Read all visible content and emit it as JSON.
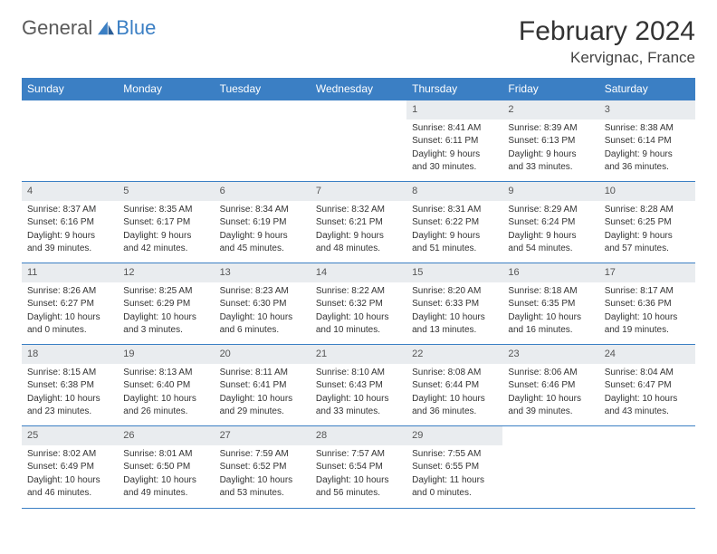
{
  "logo": {
    "general": "General",
    "blue": "Blue"
  },
  "title": "February 2024",
  "location": "Kervignac, France",
  "colors": {
    "header_bg": "#3b7fc4",
    "header_fg": "#ffffff",
    "daynum_bg": "#e9ecef",
    "rule": "#3b7fc4",
    "logo_accent": "#3b7fc4"
  },
  "weekdays": [
    "Sunday",
    "Monday",
    "Tuesday",
    "Wednesday",
    "Thursday",
    "Friday",
    "Saturday"
  ],
  "days": {
    "1": {
      "sunrise": "8:41 AM",
      "sunset": "6:11 PM",
      "daylight_h": 9,
      "daylight_m": 30
    },
    "2": {
      "sunrise": "8:39 AM",
      "sunset": "6:13 PM",
      "daylight_h": 9,
      "daylight_m": 33
    },
    "3": {
      "sunrise": "8:38 AM",
      "sunset": "6:14 PM",
      "daylight_h": 9,
      "daylight_m": 36
    },
    "4": {
      "sunrise": "8:37 AM",
      "sunset": "6:16 PM",
      "daylight_h": 9,
      "daylight_m": 39
    },
    "5": {
      "sunrise": "8:35 AM",
      "sunset": "6:17 PM",
      "daylight_h": 9,
      "daylight_m": 42
    },
    "6": {
      "sunrise": "8:34 AM",
      "sunset": "6:19 PM",
      "daylight_h": 9,
      "daylight_m": 45
    },
    "7": {
      "sunrise": "8:32 AM",
      "sunset": "6:21 PM",
      "daylight_h": 9,
      "daylight_m": 48
    },
    "8": {
      "sunrise": "8:31 AM",
      "sunset": "6:22 PM",
      "daylight_h": 9,
      "daylight_m": 51
    },
    "9": {
      "sunrise": "8:29 AM",
      "sunset": "6:24 PM",
      "daylight_h": 9,
      "daylight_m": 54
    },
    "10": {
      "sunrise": "8:28 AM",
      "sunset": "6:25 PM",
      "daylight_h": 9,
      "daylight_m": 57
    },
    "11": {
      "sunrise": "8:26 AM",
      "sunset": "6:27 PM",
      "daylight_h": 10,
      "daylight_m": 0
    },
    "12": {
      "sunrise": "8:25 AM",
      "sunset": "6:29 PM",
      "daylight_h": 10,
      "daylight_m": 3
    },
    "13": {
      "sunrise": "8:23 AM",
      "sunset": "6:30 PM",
      "daylight_h": 10,
      "daylight_m": 6
    },
    "14": {
      "sunrise": "8:22 AM",
      "sunset": "6:32 PM",
      "daylight_h": 10,
      "daylight_m": 10
    },
    "15": {
      "sunrise": "8:20 AM",
      "sunset": "6:33 PM",
      "daylight_h": 10,
      "daylight_m": 13
    },
    "16": {
      "sunrise": "8:18 AM",
      "sunset": "6:35 PM",
      "daylight_h": 10,
      "daylight_m": 16
    },
    "17": {
      "sunrise": "8:17 AM",
      "sunset": "6:36 PM",
      "daylight_h": 10,
      "daylight_m": 19
    },
    "18": {
      "sunrise": "8:15 AM",
      "sunset": "6:38 PM",
      "daylight_h": 10,
      "daylight_m": 23
    },
    "19": {
      "sunrise": "8:13 AM",
      "sunset": "6:40 PM",
      "daylight_h": 10,
      "daylight_m": 26
    },
    "20": {
      "sunrise": "8:11 AM",
      "sunset": "6:41 PM",
      "daylight_h": 10,
      "daylight_m": 29
    },
    "21": {
      "sunrise": "8:10 AM",
      "sunset": "6:43 PM",
      "daylight_h": 10,
      "daylight_m": 33
    },
    "22": {
      "sunrise": "8:08 AM",
      "sunset": "6:44 PM",
      "daylight_h": 10,
      "daylight_m": 36
    },
    "23": {
      "sunrise": "8:06 AM",
      "sunset": "6:46 PM",
      "daylight_h": 10,
      "daylight_m": 39
    },
    "24": {
      "sunrise": "8:04 AM",
      "sunset": "6:47 PM",
      "daylight_h": 10,
      "daylight_m": 43
    },
    "25": {
      "sunrise": "8:02 AM",
      "sunset": "6:49 PM",
      "daylight_h": 10,
      "daylight_m": 46
    },
    "26": {
      "sunrise": "8:01 AM",
      "sunset": "6:50 PM",
      "daylight_h": 10,
      "daylight_m": 49
    },
    "27": {
      "sunrise": "7:59 AM",
      "sunset": "6:52 PM",
      "daylight_h": 10,
      "daylight_m": 53
    },
    "28": {
      "sunrise": "7:57 AM",
      "sunset": "6:54 PM",
      "daylight_h": 10,
      "daylight_m": 56
    },
    "29": {
      "sunrise": "7:55 AM",
      "sunset": "6:55 PM",
      "daylight_h": 11,
      "daylight_m": 0
    }
  },
  "grid": [
    [
      null,
      null,
      null,
      null,
      "1",
      "2",
      "3"
    ],
    [
      "4",
      "5",
      "6",
      "7",
      "8",
      "9",
      "10"
    ],
    [
      "11",
      "12",
      "13",
      "14",
      "15",
      "16",
      "17"
    ],
    [
      "18",
      "19",
      "20",
      "21",
      "22",
      "23",
      "24"
    ],
    [
      "25",
      "26",
      "27",
      "28",
      "29",
      null,
      null
    ]
  ],
  "labels": {
    "sunrise_prefix": "Sunrise: ",
    "sunset_prefix": "Sunset: ",
    "daylight_prefix": "Daylight: ",
    "hours_word": " hours",
    "and_word": "and ",
    "minutes_word": " minutes."
  }
}
